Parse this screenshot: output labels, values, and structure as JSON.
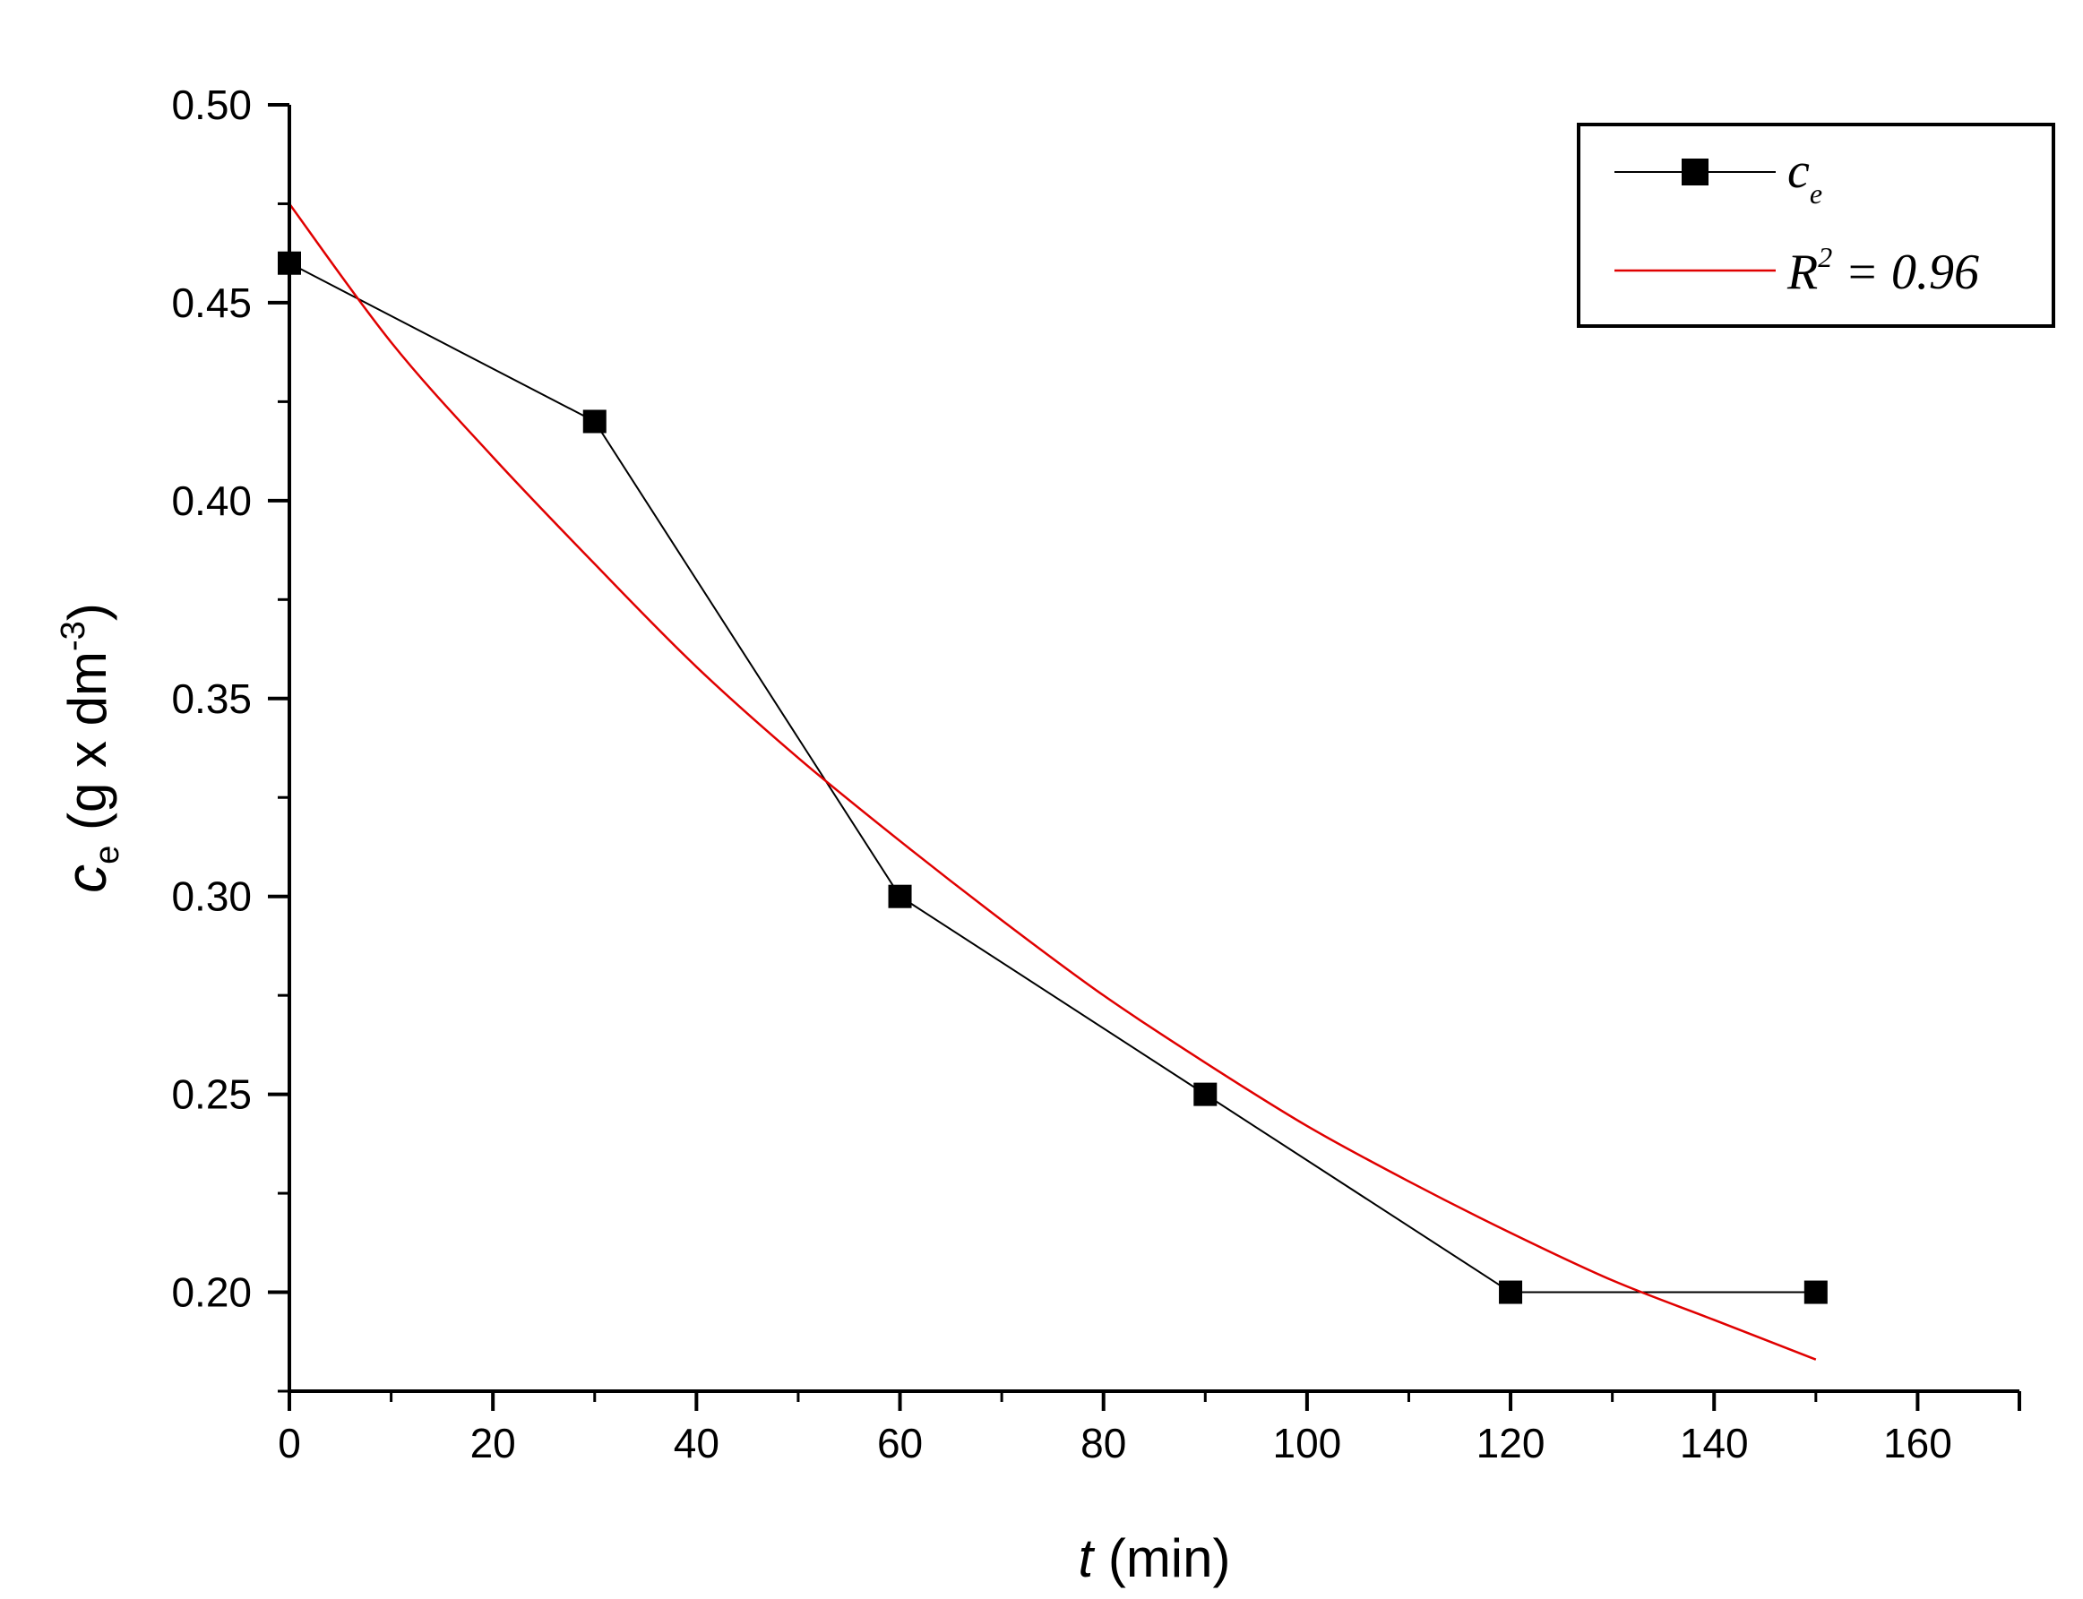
{
  "chart_data": {
    "type": "line",
    "xlabel": {
      "var": "t",
      "unit": "(min)"
    },
    "ylabel": {
      "var": "c",
      "sub": "e",
      "unit_pre": "(g x dm",
      "sup": "-3",
      "unit_post": ")"
    },
    "xlim": [
      0,
      170
    ],
    "ylim": [
      0.175,
      0.5
    ],
    "x_ticks": [
      0,
      20,
      40,
      60,
      80,
      100,
      120,
      140,
      160
    ],
    "x_tick_labels": [
      "0",
      "20",
      "40",
      "60",
      "80",
      "100",
      "120",
      "140",
      "160"
    ],
    "y_ticks": [
      0.2,
      0.25,
      0.3,
      0.35,
      0.4,
      0.45,
      0.5
    ],
    "y_tick_labels": [
      "0.20",
      "0.25",
      "0.30",
      "0.35",
      "0.40",
      "0.45",
      "0.50"
    ],
    "grid": false,
    "legend_position": "top-right",
    "series": [
      {
        "name": "c_e",
        "legend": {
          "main": "c",
          "sub": "e"
        },
        "style": "line+square-markers",
        "color": "#000000",
        "x": [
          0,
          30,
          60,
          90,
          120,
          150
        ],
        "y": [
          0.46,
          0.42,
          0.3,
          0.25,
          0.2,
          0.2
        ]
      },
      {
        "name": "fit",
        "legend": {
          "main": "R",
          "sup": "2",
          "rest": " = 0.96"
        },
        "style": "line",
        "color": "#e00000",
        "x": [
          0,
          10,
          20,
          30,
          40,
          50,
          60,
          70,
          80,
          90,
          100,
          110,
          120,
          130,
          140,
          150
        ],
        "y": [
          0.475,
          0.44,
          0.411,
          0.384,
          0.358,
          0.335,
          0.314,
          0.294,
          0.275,
          0.258,
          0.242,
          0.228,
          0.215,
          0.203,
          0.193,
          0.183
        ]
      }
    ]
  }
}
